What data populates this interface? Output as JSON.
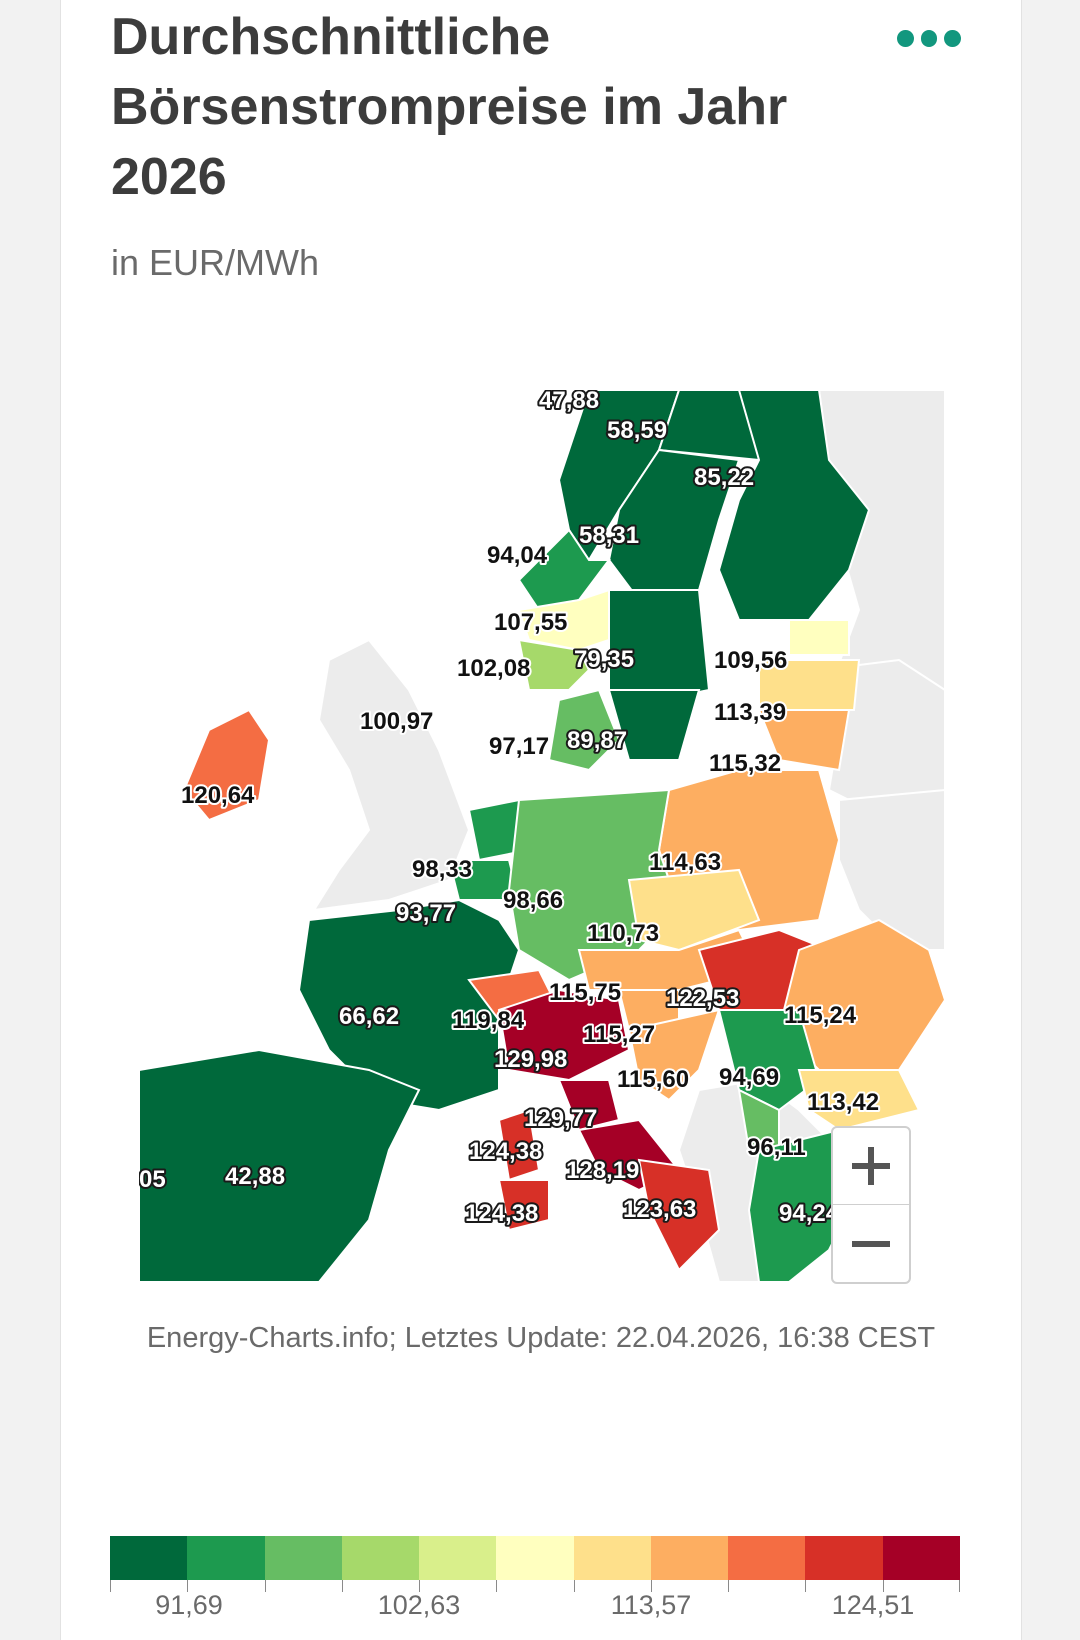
{
  "header": {
    "title": "Durchschnittliche Börsenstrompreise im Jahr 2026",
    "subtitle": "in EUR/MWh"
  },
  "map": {
    "region": "Europe",
    "value_labels": [
      {
        "id": "no4",
        "value": "47,88"
      },
      {
        "id": "se1",
        "value": "58,59"
      },
      {
        "id": "fi",
        "value": "85,22"
      },
      {
        "id": "se2",
        "value": "58,31"
      },
      {
        "id": "no3",
        "value": "94,04"
      },
      {
        "id": "no1",
        "value": "107,55"
      },
      {
        "id": "ee",
        "value": "109,56"
      },
      {
        "id": "se3",
        "value": "79,35"
      },
      {
        "id": "no2",
        "value": "102,08"
      },
      {
        "id": "gb",
        "value": "100,97"
      },
      {
        "id": "lv",
        "value": "113,39"
      },
      {
        "id": "dk1",
        "value": "97,17"
      },
      {
        "id": "se4",
        "value": "89,87"
      },
      {
        "id": "lt",
        "value": "115,32"
      },
      {
        "id": "ie",
        "value": "120,64"
      },
      {
        "id": "pl",
        "value": "114,63"
      },
      {
        "id": "nl",
        "value": "98,33"
      },
      {
        "id": "de",
        "value": "98,66"
      },
      {
        "id": "be",
        "value": "93,77"
      },
      {
        "id": "cz",
        "value": "110,73"
      },
      {
        "id": "at",
        "value": "115,75"
      },
      {
        "id": "hu",
        "value": "122,53"
      },
      {
        "id": "ro",
        "value": "115,24"
      },
      {
        "id": "fr",
        "value": "66,62"
      },
      {
        "id": "ch",
        "value": "119,84"
      },
      {
        "id": "si",
        "value": "115,27"
      },
      {
        "id": "it_nord",
        "value": "129,98"
      },
      {
        "id": "hr",
        "value": "115,60"
      },
      {
        "id": "rs",
        "value": "94,69"
      },
      {
        "id": "bg",
        "value": "113,42"
      },
      {
        "id": "it_cnor",
        "value": "129,77"
      },
      {
        "id": "me",
        "value": "96,11"
      },
      {
        "id": "it_sard",
        "value": "124,38"
      },
      {
        "id": "it_csud",
        "value": "128,19"
      },
      {
        "id": "pt",
        "value": "05"
      },
      {
        "id": "es",
        "value": "42,88"
      },
      {
        "id": "gr",
        "value": "94,24"
      },
      {
        "id": "it_sici",
        "value": "124,38"
      },
      {
        "id": "it_sud",
        "value": "123,63"
      }
    ]
  },
  "zoom_controls": {
    "zoom_in": "+",
    "zoom_out": "−"
  },
  "source": "Energy-Charts.info; Letztes Update: 22.04.2026, 16:38 CEST",
  "legend": {
    "colors": [
      "#00693b",
      "#1d9a4f",
      "#66bd63",
      "#a6d96a",
      "#d9ef8b",
      "#ffffbf",
      "#fee08b",
      "#fdae61",
      "#f46d43",
      "#d73027",
      "#a50026"
    ],
    "tick_labels": [
      "91,69",
      "102,63",
      "113,57",
      "124,51"
    ]
  }
}
